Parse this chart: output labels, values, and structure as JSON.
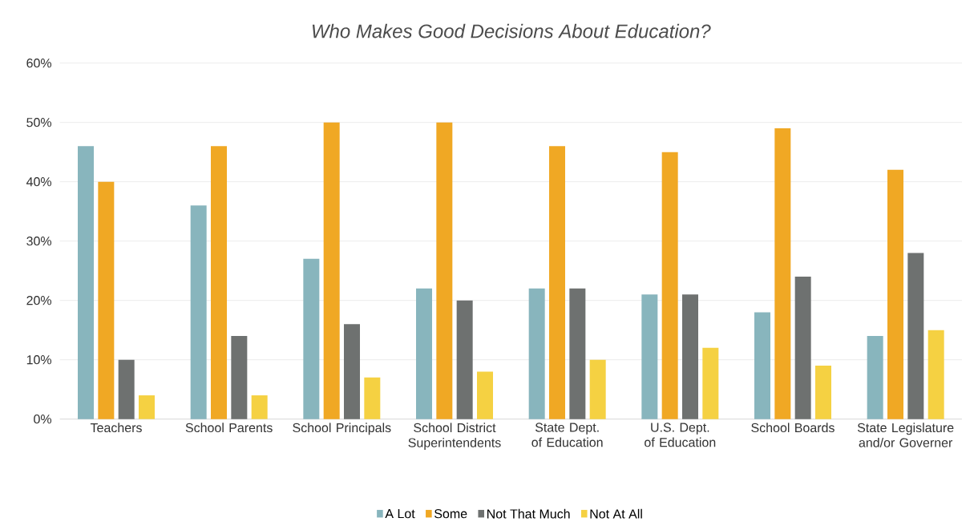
{
  "chart_data": {
    "type": "bar",
    "title": "Who Makes Good Decisions About Education?",
    "categories": [
      "Teachers",
      "School Parents",
      "School Principals",
      "School District Superintendents",
      "State Dept. of Education",
      "U.S. Dept. of Education",
      "School Boards",
      "State Legislature and/or Governer"
    ],
    "series": [
      {
        "name": "A Lot",
        "color": "#88b5bd",
        "values": [
          46,
          36,
          27,
          22,
          22,
          21,
          18,
          14
        ]
      },
      {
        "name": "Some",
        "color": "#f0a824",
        "values": [
          40,
          46,
          50,
          50,
          46,
          45,
          49,
          42
        ]
      },
      {
        "name": "Not That Much",
        "color": "#6e7170",
        "values": [
          10,
          14,
          16,
          20,
          22,
          21,
          24,
          28
        ]
      },
      {
        "name": "Not At All",
        "color": "#f5d142",
        "values": [
          4,
          4,
          7,
          8,
          10,
          12,
          9,
          15
        ]
      }
    ],
    "ylim": [
      0,
      60
    ],
    "yticks": [
      {
        "value": 0,
        "label": "0%"
      },
      {
        "value": 10,
        "label": "10%"
      },
      {
        "value": 20,
        "label": "20%"
      },
      {
        "value": 30,
        "label": "30%"
      },
      {
        "value": 40,
        "label": "40%"
      },
      {
        "value": 50,
        "label": "50%"
      },
      {
        "value": 60,
        "label": "60%"
      }
    ],
    "grid": "y",
    "legend": "bottom"
  }
}
